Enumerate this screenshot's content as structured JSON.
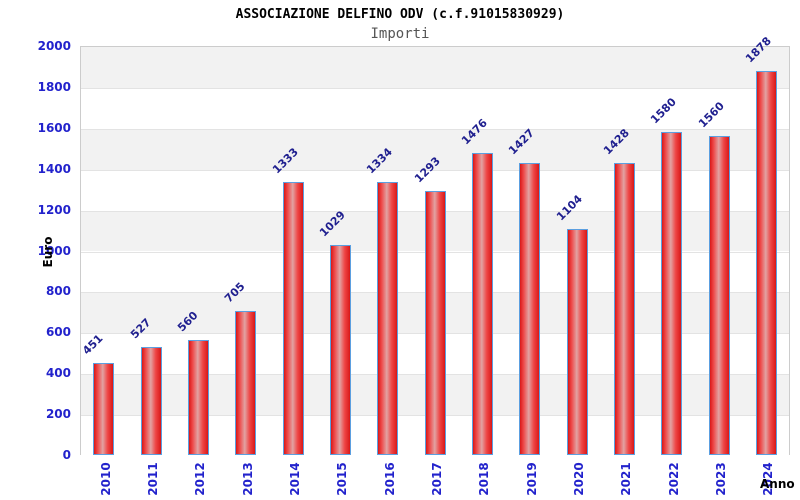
{
  "chart_data": {
    "type": "bar",
    "title": "ASSOCIAZIONE DELFINO ODV (c.f.91015830929)",
    "subtitle": "Importi",
    "xlabel": "Anno",
    "ylabel": "Euro",
    "categories": [
      "2010",
      "2011",
      "2012",
      "2013",
      "2014",
      "2015",
      "2016",
      "2017",
      "2018",
      "2019",
      "2020",
      "2021",
      "2022",
      "2023",
      "2024"
    ],
    "values": [
      451,
      527,
      560,
      705,
      1333,
      1029,
      1334,
      1293,
      1476,
      1427,
      1104,
      1428,
      1580,
      1560,
      1878
    ],
    "ylim": [
      0,
      2000
    ],
    "y_ticks": [
      0,
      200,
      400,
      600,
      800,
      1000,
      1200,
      1400,
      1600,
      1800,
      2000
    ],
    "grid": true,
    "legend": null,
    "colors": {
      "bar_fill": "#e32222",
      "bar_fill_highlight": "#e2a2a2",
      "bar_border": "#5b9fe0",
      "axis_tick_label": "#2222cc",
      "value_label": "#1f1f8f",
      "band_gray": "#f2f2f2",
      "band_white": "#ffffff",
      "gridline": "#e3e3e3",
      "plot_border": "#cccccc",
      "title": "#000000",
      "subtitle": "#555555"
    }
  }
}
